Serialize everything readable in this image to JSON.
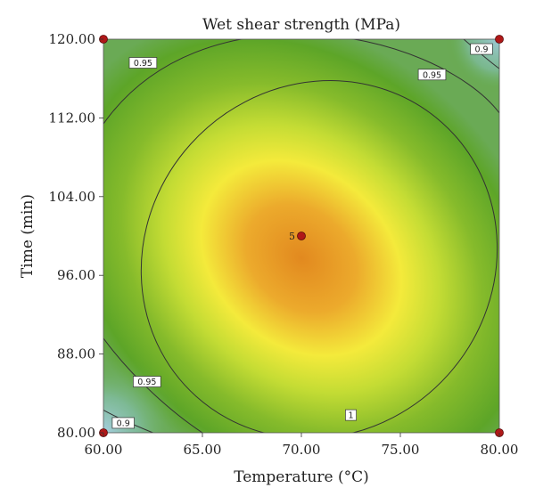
{
  "chart_data": {
    "type": "contour",
    "title": "Wet shear strength (MPa)",
    "xlabel": "Temperature (°C)",
    "ylabel": "Time (min)",
    "xlim": [
      60,
      80
    ],
    "ylim": [
      80,
      120
    ],
    "x_ticks": [
      "60.00",
      "65.00",
      "70.00",
      "75.00",
      "80.00"
    ],
    "y_ticks": [
      "80.00",
      "88.00",
      "96.00",
      "104.00",
      "112.00",
      "120.00"
    ],
    "grid": false,
    "colors": {
      "high": "#e58f28",
      "mid_high": "#f3ec3a",
      "mid": "#9fc42a",
      "low": "#60a528",
      "lowest": "#7ab9b0"
    },
    "contours": [
      {
        "level": "1",
        "label": "1",
        "center": [
          70.9,
          97.6
        ],
        "radius_x": 9.3,
        "radius_y": 19.5,
        "rotation_deg": -48
      },
      {
        "level": "0.95",
        "labels": [
          {
            "text": "0.95",
            "x": 62.0,
            "y": 117.6
          },
          {
            "text": "0.95",
            "x": 76.6,
            "y": 116.4
          },
          {
            "text": "0.95",
            "x": 62.2,
            "y": 85.2
          }
        ]
      },
      {
        "level": "0.9",
        "labels": [
          {
            "text": "0.9",
            "x": 79.1,
            "y": 119.0
          },
          {
            "text": "0.9",
            "x": 61.0,
            "y": 81.0
          }
        ]
      }
    ],
    "design_points": [
      {
        "x": 60,
        "y": 120,
        "label": ""
      },
      {
        "x": 80,
        "y": 120,
        "label": ""
      },
      {
        "x": 60,
        "y": 80,
        "label": ""
      },
      {
        "x": 80,
        "y": 80,
        "label": ""
      },
      {
        "x": 70,
        "y": 100,
        "label": "5"
      }
    ]
  }
}
